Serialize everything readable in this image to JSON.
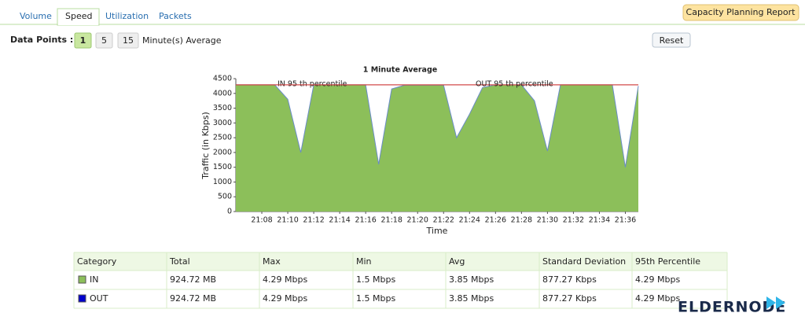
{
  "tabs": [
    "Volume",
    "Speed",
    "Utilization",
    "Packets"
  ],
  "report_button": "Capacity Planning Report",
  "data_points": {
    "label": "Data Points :",
    "options": [
      "1",
      "5",
      "15"
    ],
    "suffix": "Minute(s) Average"
  },
  "reset_button": "Reset",
  "chart_data": {
    "type": "area",
    "title": "1 Minute Average",
    "x_label": "Time",
    "y_label": "Traffic (in Kbps)",
    "categories": [
      null,
      null,
      "21:08",
      null,
      "21:10",
      null,
      "21:12",
      null,
      "21:14",
      null,
      "21:16",
      null,
      "21:18",
      null,
      "21:20",
      null,
      "21:22",
      null,
      "21:24",
      null,
      "21:26",
      null,
      "21:28",
      null,
      "21:30",
      null,
      "21:32",
      null,
      "21:34",
      null,
      "21:36",
      null
    ],
    "values": [
      4290,
      4290,
      4290,
      4290,
      3800,
      2000,
      4290,
      4290,
      4290,
      4290,
      4290,
      1600,
      4150,
      4280,
      4280,
      4280,
      4280,
      2500,
      3300,
      4200,
      4290,
      4290,
      4290,
      3750,
      2050,
      4290,
      4290,
      4290,
      4290,
      4290,
      1500,
      4250
    ],
    "color": "#8cbf5a",
    "line_color": "#6a8cc8",
    "ylim": [
      0,
      4500
    ],
    "yticks": [
      0,
      500,
      1000,
      1500,
      2000,
      2500,
      3000,
      3500,
      4000,
      4500
    ],
    "reference_lines": [
      {
        "label": "IN 95 th percentile",
        "value": 4290
      },
      {
        "label": "OUT 95 th percentile",
        "value": 4290
      }
    ],
    "reference_color": "#d04040"
  },
  "table": {
    "headers": [
      "Category",
      "Total",
      "Max",
      "Min",
      "Avg",
      "Standard Deviation",
      "95th Percentile"
    ],
    "rows": [
      [
        "IN",
        "924.72 MB",
        "4.29 Mbps",
        "1.5 Mbps",
        "3.85 Mbps",
        "877.27 Kbps",
        "4.29 Mbps"
      ],
      [
        "OUT",
        "924.72 MB",
        "4.29 Mbps",
        "1.5 Mbps",
        "3.85 Mbps",
        "877.27 Kbps",
        "4.29 Mbps"
      ]
    ],
    "row_colors": [
      "#8cbf5a",
      "#0000cc"
    ]
  },
  "watermark": "ELDERNODE"
}
